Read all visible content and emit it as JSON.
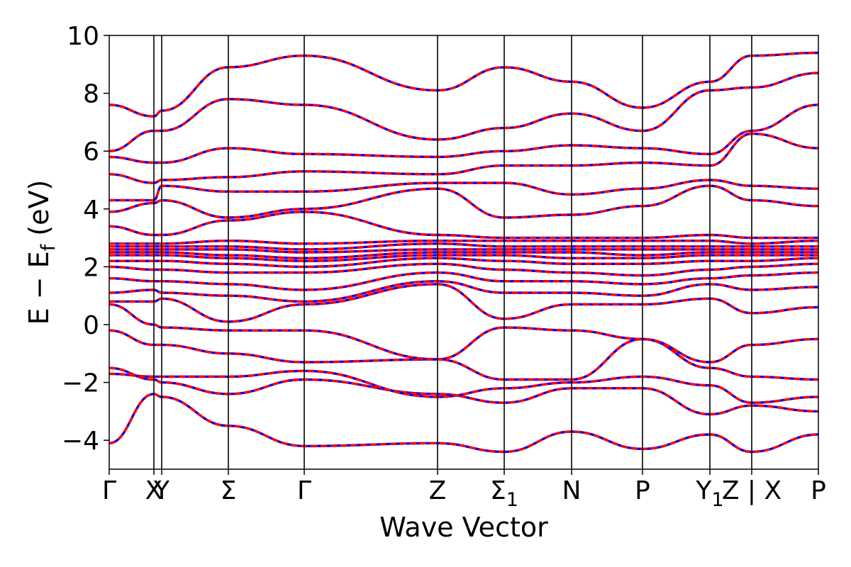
{
  "chart_data": {
    "type": "line",
    "xlabel": "Wave Vector",
    "ylabel_parts": [
      "E",
      " − ",
      "E",
      "f",
      " (eV)"
    ],
    "ylim": [
      -5,
      10
    ],
    "y_ticks": [
      -4,
      -2,
      0,
      2,
      4,
      6,
      8,
      10
    ],
    "y_tick_labels": [
      "−4",
      "−2",
      "0",
      "2",
      "4",
      "6",
      "8",
      "10"
    ],
    "k_path": [
      {
        "label": "Γ",
        "k": 0.0
      },
      {
        "label": "X",
        "k": 0.063
      },
      {
        "label": "Y",
        "k": 0.074
      },
      {
        "label": "Σ",
        "k": 0.168
      },
      {
        "label": "Γ",
        "k": 0.275
      },
      {
        "label": "Z",
        "k": 0.463
      },
      {
        "label": "Σ",
        "sub": "1",
        "k": 0.557
      },
      {
        "label": "N",
        "k": 0.652
      },
      {
        "label": "P",
        "k": 0.752
      },
      {
        "label": "Y",
        "sub": "1",
        "k": 0.847
      },
      {
        "label": "Z | X",
        "k": 0.906
      },
      {
        "label": "P",
        "k": 1.0
      }
    ],
    "series_colors": {
      "dft": "#0000ff",
      "wannier": "#ff0000"
    },
    "bands": [
      {
        "e": [
          -4.1,
          -2.4,
          -2.5,
          -3.5,
          -4.2,
          -4.1,
          -4.4,
          -3.7,
          -4.3,
          -3.8,
          -4.4,
          -3.8
        ]
      },
      {
        "e": [
          -1.5,
          -1.9,
          -2.0,
          -2.4,
          -1.9,
          -2.4,
          -2.7,
          -2.2,
          -2.2,
          -3.1,
          -2.8,
          -3.0
        ]
      },
      {
        "e": [
          -1.7,
          -1.8,
          -1.8,
          -1.8,
          -1.6,
          -2.5,
          -2.2,
          -2.0,
          -1.8,
          -2.1,
          -2.7,
          -2.5
        ]
      },
      {
        "e": [
          -0.2,
          -0.7,
          -0.7,
          -1.0,
          -1.3,
          -1.2,
          -1.9,
          -1.9,
          -0.5,
          -1.5,
          -1.8,
          -1.9
        ]
      },
      {
        "e": [
          0.7,
          0.0,
          -0.1,
          -0.2,
          -0.2,
          -1.2,
          -0.1,
          -0.2,
          -0.5,
          -1.3,
          -0.7,
          -0.5
        ]
      },
      {
        "e": [
          0.8,
          0.8,
          0.9,
          0.1,
          0.7,
          1.4,
          0.2,
          0.7,
          0.7,
          0.9,
          0.4,
          0.6
        ]
      },
      {
        "e": [
          1.1,
          1.2,
          1.1,
          1.0,
          0.8,
          1.5,
          1.1,
          1.1,
          1.0,
          1.4,
          1.2,
          1.3
        ]
      },
      {
        "e": [
          1.6,
          1.5,
          1.5,
          1.4,
          1.2,
          1.8,
          1.5,
          1.5,
          1.4,
          1.6,
          1.7,
          1.8
        ]
      },
      {
        "e": [
          2.0,
          1.9,
          1.9,
          1.8,
          1.8,
          2.1,
          1.9,
          1.8,
          1.7,
          1.9,
          2.0,
          2.1
        ]
      },
      {
        "e": [
          2.2,
          2.2,
          2.2,
          2.1,
          2.0,
          2.3,
          2.2,
          2.1,
          2.1,
          2.2,
          2.2,
          2.3
        ]
      },
      {
        "e": [
          2.4,
          2.4,
          2.4,
          2.3,
          2.2,
          2.4,
          2.4,
          2.3,
          2.3,
          2.4,
          2.4,
          2.4
        ]
      },
      {
        "e": [
          2.5,
          2.5,
          2.5,
          2.4,
          2.3,
          2.5,
          2.5,
          2.5,
          2.4,
          2.5,
          2.5,
          2.5
        ]
      },
      {
        "e": [
          2.6,
          2.6,
          2.6,
          2.6,
          2.5,
          2.6,
          2.6,
          2.6,
          2.6,
          2.6,
          2.6,
          2.6
        ]
      },
      {
        "e": [
          2.7,
          2.7,
          2.7,
          2.7,
          2.6,
          2.8,
          2.7,
          2.7,
          2.7,
          2.7,
          2.7,
          2.7
        ]
      },
      {
        "e": [
          2.8,
          2.8,
          2.8,
          2.9,
          2.8,
          2.9,
          2.9,
          2.9,
          2.9,
          2.9,
          2.8,
          2.9
        ]
      },
      {
        "e": [
          3.4,
          3.1,
          3.1,
          3.6,
          3.9,
          3.1,
          3.0,
          3.0,
          3.0,
          3.1,
          3.0,
          3.0
        ]
      },
      {
        "e": [
          3.9,
          4.2,
          4.3,
          3.7,
          4.0,
          4.7,
          3.7,
          3.8,
          4.1,
          4.8,
          4.3,
          4.1
        ]
      },
      {
        "e": [
          4.3,
          4.3,
          4.8,
          4.6,
          4.6,
          4.9,
          4.9,
          4.5,
          4.7,
          5.0,
          4.8,
          4.7
        ]
      },
      {
        "e": [
          5.2,
          4.9,
          5.0,
          5.1,
          5.3,
          5.2,
          5.5,
          5.5,
          5.6,
          5.5,
          6.6,
          6.1
        ]
      },
      {
        "e": [
          5.8,
          5.6,
          5.6,
          6.1,
          5.9,
          5.8,
          6.0,
          6.2,
          6.1,
          5.9,
          6.7,
          7.6
        ]
      },
      {
        "e": [
          6.0,
          6.7,
          6.7,
          7.8,
          7.6,
          6.4,
          6.8,
          7.3,
          6.7,
          8.1,
          8.2,
          8.7
        ]
      },
      {
        "e": [
          7.6,
          7.2,
          7.4,
          8.9,
          9.3,
          8.1,
          8.9,
          8.4,
          7.5,
          8.4,
          9.3,
          9.4
        ]
      }
    ]
  }
}
